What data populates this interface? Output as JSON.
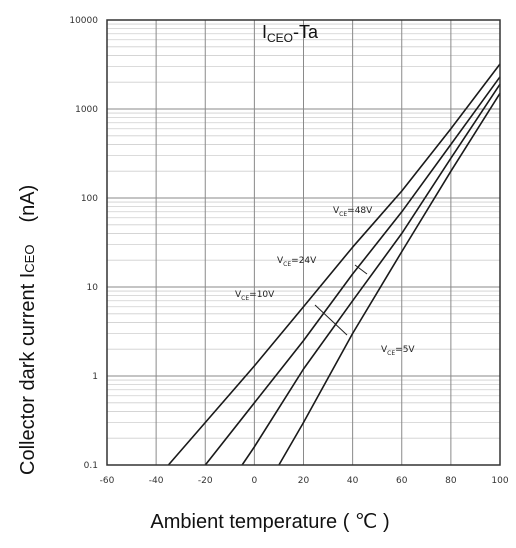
{
  "chart_data": {
    "type": "line",
    "title_main": "I",
    "title_sub": "CEO",
    "title_suffix": "-Ta",
    "xlabel": "Ambient temperature ( ℃ )",
    "ylabel": "Collector dark current I",
    "ylabel_sub": "CEO",
    "ylabel_unit": "(nA)",
    "x_scale": "linear",
    "y_scale": "log",
    "xlim": [
      -60,
      100
    ],
    "ylim": [
      0.1,
      10000
    ],
    "x_ticks": [
      -60,
      -40,
      -20,
      0,
      20,
      40,
      60,
      80,
      100
    ],
    "x_tick_labels": [
      "-60",
      "-40",
      "-20",
      "0",
      "20",
      "40",
      "60",
      "80",
      "100"
    ],
    "y_ticks": [
      0.1,
      1,
      10,
      100,
      1000,
      10000
    ],
    "y_tick_labels": [
      "0.1",
      "1",
      "10",
      "100",
      "1000",
      "10000"
    ],
    "grid": true,
    "series": [
      {
        "name": "V_CE=48V",
        "label_main": "V",
        "label_sub": "CE",
        "label_value": "=48V",
        "x": [
          -35,
          -20,
          0,
          20,
          40,
          60,
          80,
          100
        ],
        "y": [
          0.1,
          0.3,
          1.3,
          6,
          28,
          120,
          600,
          3200
        ]
      },
      {
        "name": "V_CE=24V",
        "label_main": "V",
        "label_sub": "CE",
        "label_value": "=24V",
        "x": [
          -20,
          0,
          20,
          40,
          60,
          80,
          100
        ],
        "y": [
          0.1,
          0.5,
          2.5,
          14,
          70,
          400,
          2300
        ]
      },
      {
        "name": "V_CE=10V",
        "label_main": "V",
        "label_sub": "CE",
        "label_value": "=10V",
        "x": [
          -5,
          0,
          20,
          40,
          60,
          80,
          100
        ],
        "y": [
          0.1,
          0.16,
          1.2,
          7,
          40,
          280,
          1900
        ]
      },
      {
        "name": "V_CE=5V",
        "label_main": "V",
        "label_sub": "CE",
        "label_value": "=5V",
        "x": [
          10,
          20,
          40,
          60,
          80,
          100
        ],
        "y": [
          0.1,
          0.3,
          3,
          25,
          200,
          1500
        ]
      }
    ]
  }
}
